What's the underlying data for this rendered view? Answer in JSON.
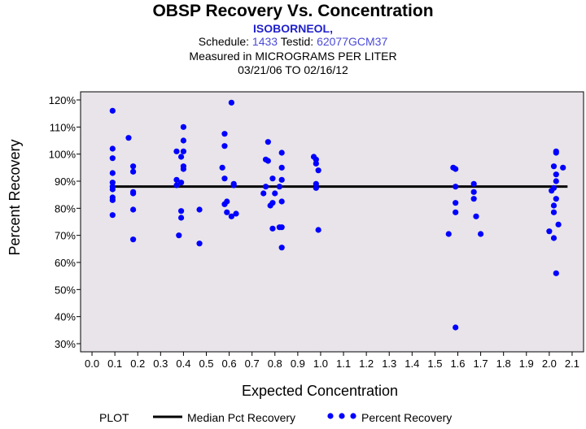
{
  "chart_data": {
    "type": "scatter",
    "title": "OBSP Recovery Vs. Concentration",
    "analyte": "ISOBORNEOL,",
    "schedule_label": "Schedule:",
    "schedule": "1433",
    "testid_label": "Testid:",
    "testid": "62077GCM37",
    "units_line": "Measured in  MICROGRAMS PER LITER",
    "date_range": "03/21/06 TO 02/16/12",
    "xlabel": "Expected Concentration",
    "ylabel": "Percent Recovery",
    "xlim": [
      -0.05,
      2.15
    ],
    "ylim": [
      27,
      123
    ],
    "x_ticks": [
      0.0,
      0.1,
      0.2,
      0.3,
      0.4,
      0.5,
      0.6,
      0.7,
      0.8,
      0.9,
      1.0,
      1.1,
      1.2,
      1.3,
      1.4,
      1.5,
      1.6,
      1.7,
      1.8,
      1.9,
      2.0,
      2.1
    ],
    "x_tick_labels": [
      "0.0",
      "0.1",
      "0.2",
      "0.3",
      "0.4",
      "0.5",
      "0.6",
      "0.7",
      "0.8",
      "0.9",
      "1.0",
      "1.1",
      "1.2",
      "1.3",
      "1.4",
      "1.5",
      "1.6",
      "1.7",
      "1.8",
      "1.9",
      "2.0",
      "2.1"
    ],
    "y_ticks": [
      30,
      40,
      50,
      60,
      70,
      80,
      90,
      100,
      110,
      120
    ],
    "y_tick_labels": [
      "30%",
      "40%",
      "50%",
      "60%",
      "70%",
      "80%",
      "90%",
      "100%",
      "110%",
      "120%"
    ],
    "median": 88,
    "median_x_range": [
      0.09,
      2.08
    ],
    "legend": {
      "plot_label": "PLOT",
      "median_label": "Median Pct Recovery",
      "points_label": "Percent Recovery"
    },
    "colors": {
      "points": "#0000ff",
      "median_line": "#000000",
      "plot_bg": "#e8e4ea"
    },
    "points": [
      [
        0.09,
        116
      ],
      [
        0.09,
        102
      ],
      [
        0.09,
        98.5
      ],
      [
        0.09,
        93
      ],
      [
        0.09,
        89.5
      ],
      [
        0.09,
        88
      ],
      [
        0.09,
        87
      ],
      [
        0.09,
        84
      ],
      [
        0.09,
        83
      ],
      [
        0.09,
        77.5
      ],
      [
        0.16,
        106
      ],
      [
        0.18,
        95.5
      ],
      [
        0.18,
        93.5
      ],
      [
        0.18,
        86
      ],
      [
        0.18,
        85.5
      ],
      [
        0.18,
        79.5
      ],
      [
        0.18,
        68.5
      ],
      [
        0.37,
        101
      ],
      [
        0.37,
        90.5
      ],
      [
        0.37,
        88.5
      ],
      [
        0.38,
        70
      ],
      [
        0.39,
        99
      ],
      [
        0.39,
        89.5
      ],
      [
        0.39,
        79
      ],
      [
        0.39,
        76.5
      ],
      [
        0.4,
        110
      ],
      [
        0.4,
        105
      ],
      [
        0.4,
        101
      ],
      [
        0.4,
        95.5
      ],
      [
        0.4,
        94.5
      ],
      [
        0.47,
        79.5
      ],
      [
        0.47,
        67
      ],
      [
        0.57,
        95
      ],
      [
        0.58,
        107.5
      ],
      [
        0.58,
        103
      ],
      [
        0.58,
        91
      ],
      [
        0.58,
        81.5
      ],
      [
        0.59,
        82.5
      ],
      [
        0.59,
        78.5
      ],
      [
        0.61,
        119
      ],
      [
        0.61,
        77
      ],
      [
        0.62,
        89
      ],
      [
        0.62,
        88.5
      ],
      [
        0.63,
        78
      ],
      [
        0.75,
        85.5
      ],
      [
        0.76,
        98
      ],
      [
        0.76,
        88
      ],
      [
        0.77,
        104.5
      ],
      [
        0.77,
        97.5
      ],
      [
        0.78,
        81
      ],
      [
        0.79,
        72.5
      ],
      [
        0.79,
        82
      ],
      [
        0.79,
        91
      ],
      [
        0.8,
        85.5
      ],
      [
        0.82,
        73
      ],
      [
        0.82,
        88
      ],
      [
        0.83,
        100.5
      ],
      [
        0.83,
        95
      ],
      [
        0.83,
        90.5
      ],
      [
        0.83,
        82.5
      ],
      [
        0.83,
        73
      ],
      [
        0.83,
        65.5
      ],
      [
        0.97,
        99
      ],
      [
        0.98,
        98
      ],
      [
        0.98,
        96.5
      ],
      [
        0.98,
        89
      ],
      [
        0.98,
        87.5
      ],
      [
        0.99,
        94
      ],
      [
        0.99,
        72
      ],
      [
        1.56,
        70.5
      ],
      [
        1.58,
        95
      ],
      [
        1.59,
        94.5
      ],
      [
        1.59,
        82
      ],
      [
        1.59,
        78.5
      ],
      [
        1.59,
        88
      ],
      [
        1.59,
        36
      ],
      [
        1.67,
        89
      ],
      [
        1.67,
        86
      ],
      [
        1.67,
        83.5
      ],
      [
        1.68,
        77
      ],
      [
        1.7,
        70.5
      ],
      [
        2.0,
        71.5
      ],
      [
        2.01,
        86.5
      ],
      [
        2.02,
        95.5
      ],
      [
        2.02,
        87.5
      ],
      [
        2.02,
        81
      ],
      [
        2.02,
        78.5
      ],
      [
        2.02,
        69
      ],
      [
        2.03,
        101
      ],
      [
        2.03,
        100.5
      ],
      [
        2.03,
        92.5
      ],
      [
        2.03,
        90
      ],
      [
        2.03,
        83.5
      ],
      [
        2.03,
        56
      ],
      [
        2.04,
        74
      ],
      [
        2.06,
        95
      ]
    ]
  }
}
